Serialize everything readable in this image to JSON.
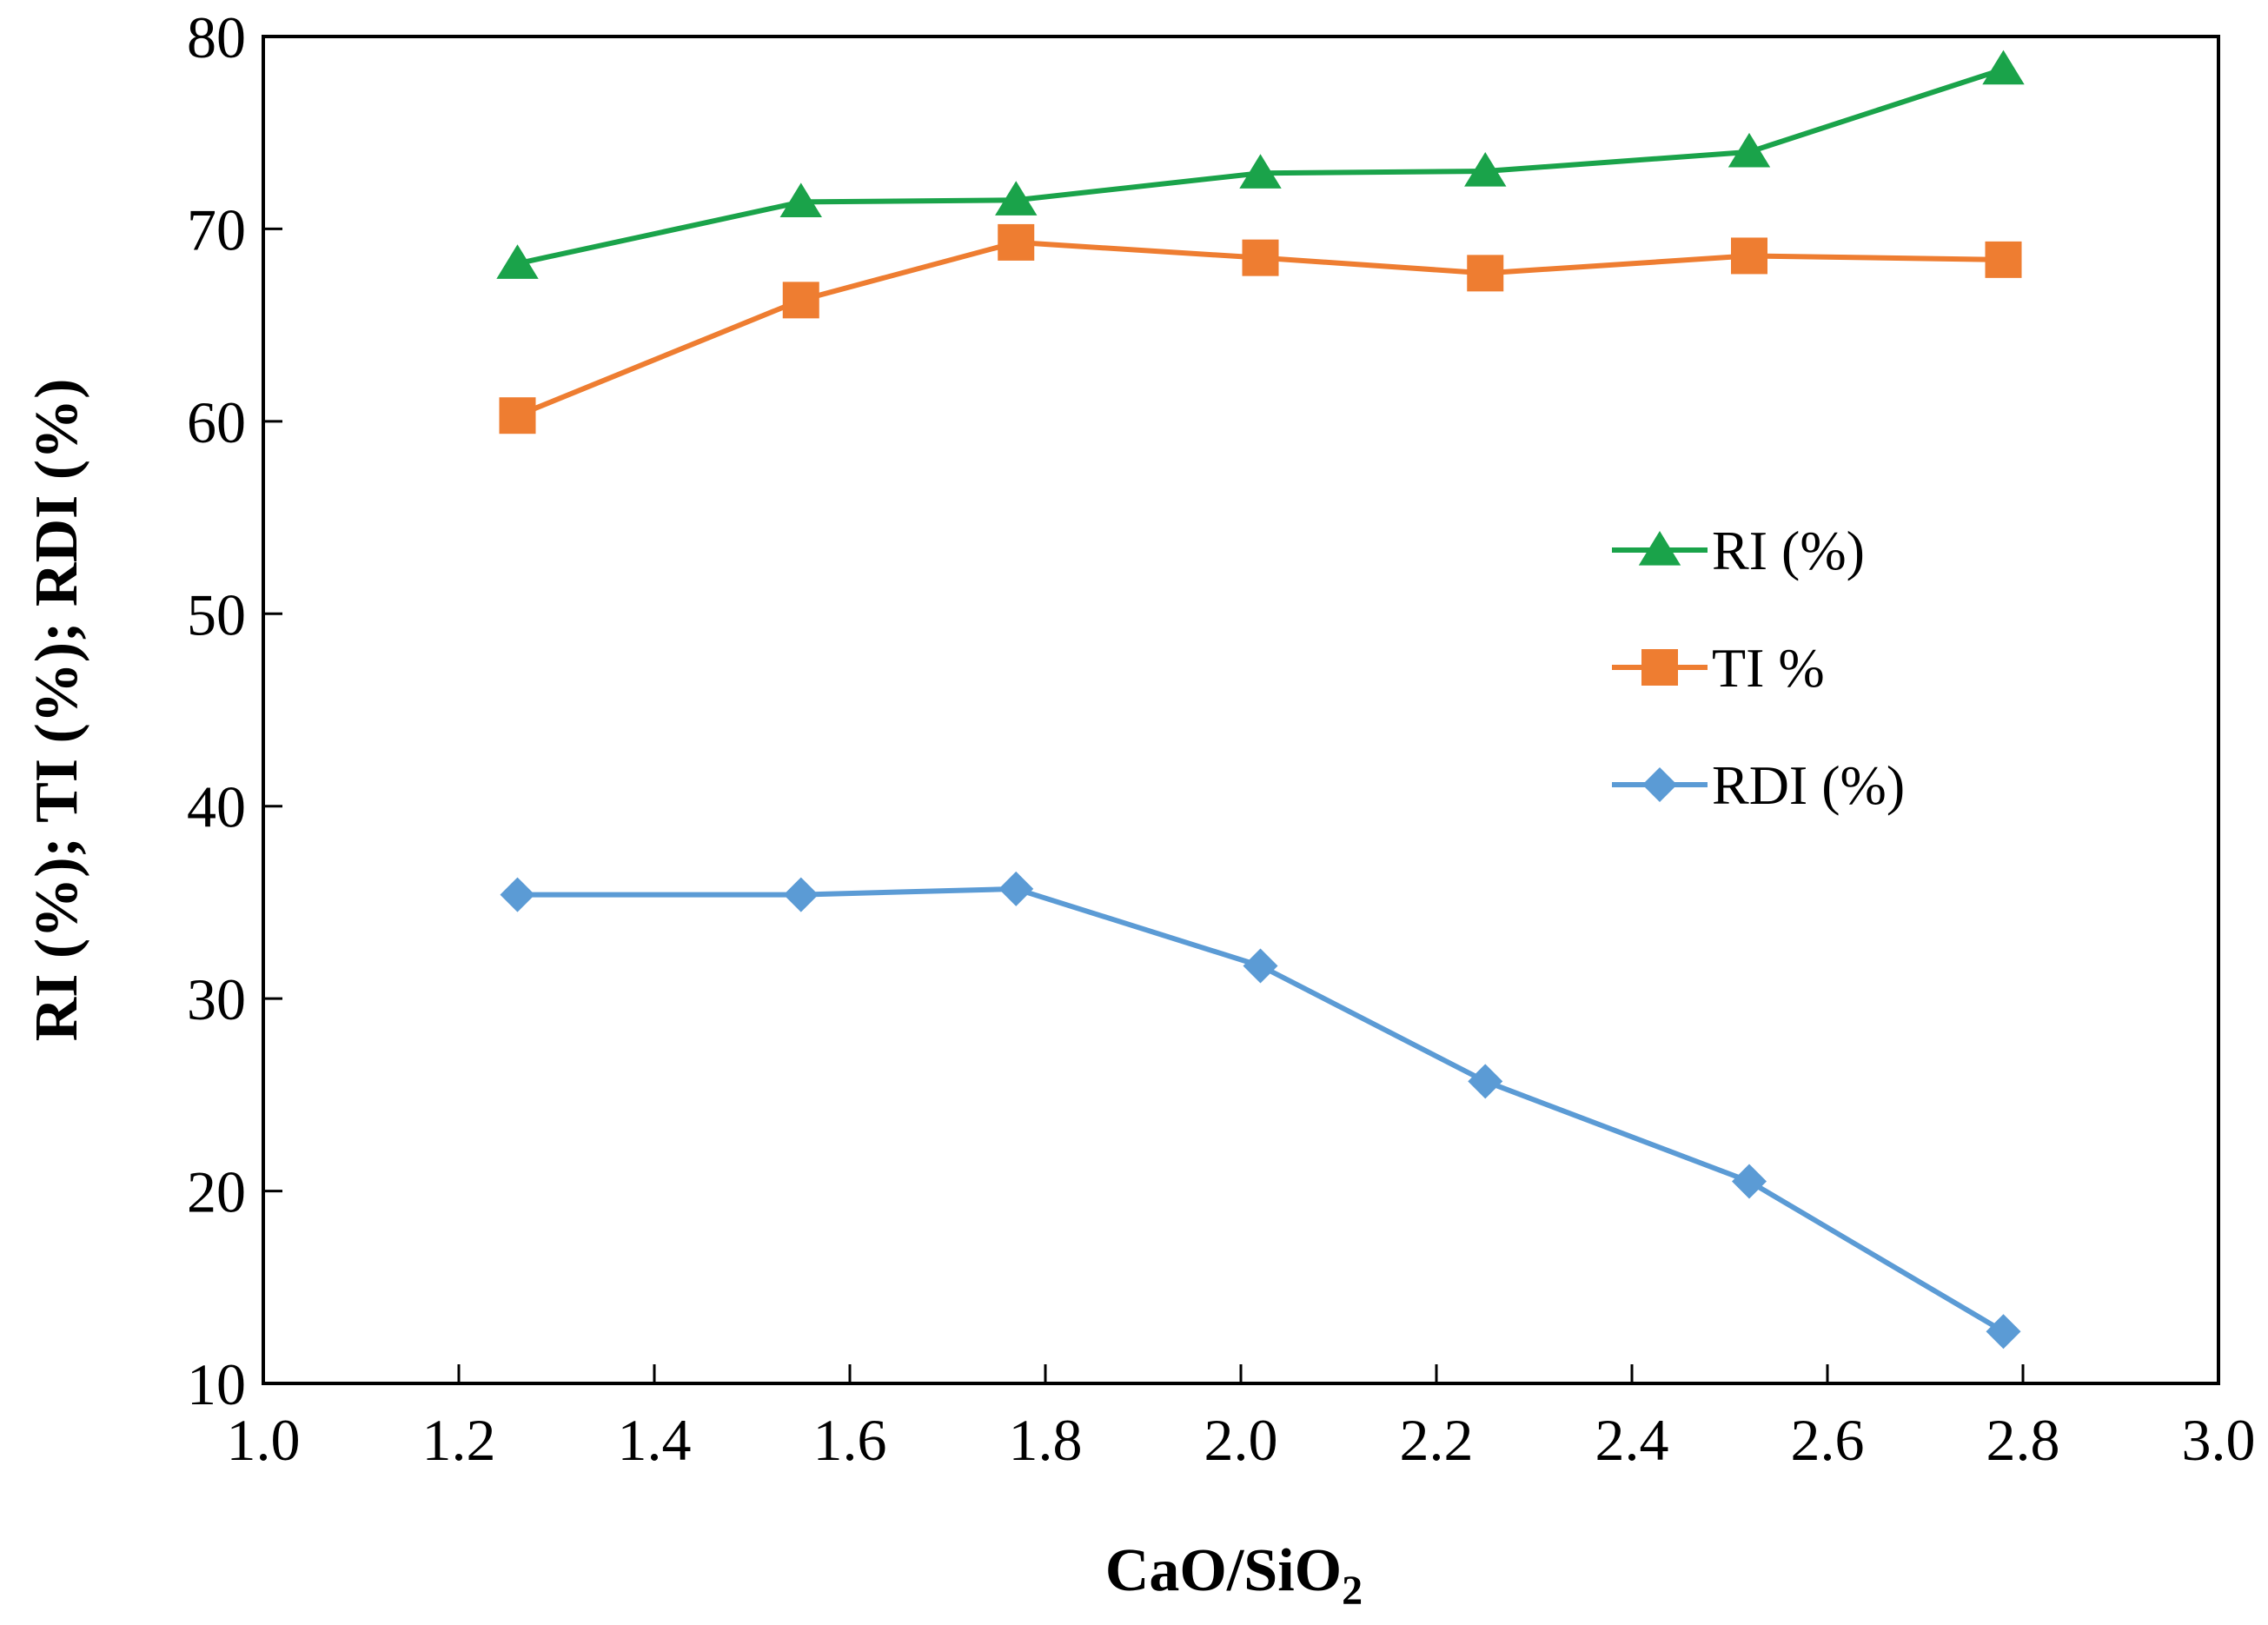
{
  "chart_data": {
    "type": "line",
    "title": "",
    "xlabel": "CaO/SiO",
    "xlabel_subscript": "2",
    "ylabel": "RI (%); TI (%); RDI (%)",
    "xlim": [
      1.0,
      3.0
    ],
    "ylim": [
      10,
      80
    ],
    "xticks": [
      "1.0",
      "1.2",
      "1.4",
      "1.6",
      "1.8",
      "2.0",
      "2.2",
      "2.4",
      "2.6",
      "2.8",
      "3.0"
    ],
    "yticks": [
      "10",
      "20",
      "30",
      "40",
      "50",
      "60",
      "70",
      "80"
    ],
    "grid": false,
    "legend_position": "right-middle",
    "x": [
      1.26,
      1.55,
      1.77,
      2.02,
      2.25,
      2.52,
      2.78
    ],
    "series": [
      {
        "name": "RI (%)",
        "marker": "triangle",
        "color": "#1aa34a",
        "values": [
          68.2,
          71.4,
          71.5,
          72.9,
          73.0,
          74.0,
          78.3
        ]
      },
      {
        "name": "TI %",
        "marker": "square",
        "color": "#ee7d31",
        "values": [
          60.3,
          66.3,
          69.3,
          68.5,
          67.7,
          68.6,
          68.4
        ]
      },
      {
        "name": "RDI (%)",
        "marker": "diamond",
        "color": "#5b9bd5",
        "values": [
          35.4,
          35.4,
          35.7,
          31.7,
          25.7,
          20.5,
          12.7
        ]
      }
    ]
  }
}
